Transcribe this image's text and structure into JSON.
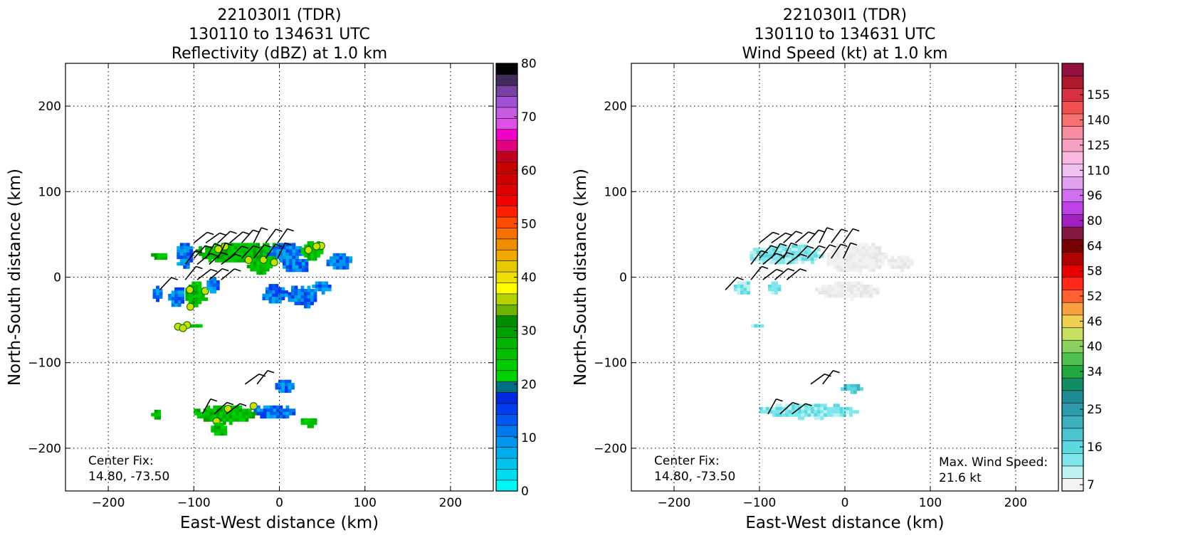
{
  "chart_data": [
    {
      "type": "heatmap",
      "title_lines": [
        "221030I1 (TDR)",
        "130110 to 134631 UTC",
        "Reflectivity (dBZ) at 1.0 km"
      ],
      "xlabel": "East-West distance (km)",
      "ylabel": "North-South distance (km)",
      "xlim": [
        -250,
        250
      ],
      "ylim": [
        -250,
        250
      ],
      "xticks": [
        -200,
        -100,
        0,
        100,
        200
      ],
      "yticks": [
        -200,
        -100,
        0,
        100,
        200
      ],
      "grid": true,
      "annotation_lines": [
        "Center Fix:",
        "14.80, -73.50"
      ],
      "colorbar": {
        "min": 0,
        "max": 80,
        "ticks": [
          "0",
          "10",
          "20",
          "30",
          "40",
          "50",
          "60",
          "70",
          "80"
        ],
        "colors": [
          "#00f5f5",
          "#00dbf0",
          "#00c3ec",
          "#00adee",
          "#0096ee",
          "#0078ee",
          "#0058f2",
          "#003cf0",
          "#0028dc",
          "#006e82",
          "#00d200",
          "#00ca00",
          "#00c000",
          "#00b400",
          "#00a000",
          "#008c00",
          "#6cb400",
          "#b4d200",
          "#ffff00",
          "#f0e000",
          "#e8c800",
          "#f0a800",
          "#f08c00",
          "#f87000",
          "#ff4c00",
          "#ff2000",
          "#f00000",
          "#e00000",
          "#d00000",
          "#c80000",
          "#c00020",
          "#e00080",
          "#f000c8",
          "#e050e8",
          "#c85ce0",
          "#a050d2",
          "#7840a0",
          "#402a5a",
          "#000000"
        ]
      },
      "regions": [
        {
          "x": [
            -98,
            12
          ],
          "y": [
            17,
            40
          ],
          "class": "green"
        },
        {
          "x": [
            -120,
            -100
          ],
          "y": [
            10,
            40
          ],
          "class": "blue"
        },
        {
          "x": [
            -15,
            30
          ],
          "y": [
            20,
            40
          ],
          "class": "blue"
        },
        {
          "x": [
            -38,
            -6
          ],
          "y": [
            5,
            22
          ],
          "class": "green"
        },
        {
          "x": [
            0,
            35
          ],
          "y": [
            5,
            25
          ],
          "class": "blue"
        },
        {
          "x": [
            25,
            50
          ],
          "y": [
            20,
            42
          ],
          "class": "green"
        },
        {
          "x": [
            55,
            85
          ],
          "y": [
            8,
            28
          ],
          "class": "blue"
        },
        {
          "x": [
            -150,
            -130
          ],
          "y": [
            20,
            28
          ],
          "class": "green"
        },
        {
          "x": [
            -148,
            -135
          ],
          "y": [
            -28,
            -10
          ],
          "class": "blue"
        },
        {
          "x": [
            -130,
            -110
          ],
          "y": [
            -35,
            -12
          ],
          "class": "blue"
        },
        {
          "x": [
            -110,
            -85
          ],
          "y": [
            -35,
            -5
          ],
          "class": "green"
        },
        {
          "x": [
            -85,
            -70
          ],
          "y": [
            -18,
            0
          ],
          "class": "blue"
        },
        {
          "x": [
            -20,
            10
          ],
          "y": [
            -30,
            -8
          ],
          "class": "blue"
        },
        {
          "x": [
            10,
            45
          ],
          "y": [
            -35,
            -10
          ],
          "class": "blue"
        },
        {
          "x": [
            38,
            60
          ],
          "y": [
            -18,
            -5
          ],
          "class": "blue"
        },
        {
          "x": [
            -120,
            -90
          ],
          "y": [
            -60,
            -55
          ],
          "class": "green"
        },
        {
          "x": [
            -100,
            -25
          ],
          "y": [
            -170,
            -150
          ],
          "class": "green"
        },
        {
          "x": [
            -30,
            20
          ],
          "y": [
            -165,
            -150
          ],
          "class": "blue"
        },
        {
          "x": [
            -5,
            20
          ],
          "y": [
            -135,
            -120
          ],
          "class": "blue"
        },
        {
          "x": [
            -150,
            -138
          ],
          "y": [
            -165,
            -155
          ],
          "class": "green"
        },
        {
          "x": [
            25,
            45
          ],
          "y": [
            -175,
            -165
          ],
          "class": "green"
        },
        {
          "x": [
            -80,
            -60
          ],
          "y": [
            -185,
            -170
          ],
          "class": "green"
        }
      ],
      "barbs": [
        {
          "x": [
            -100,
            10
          ],
          "y": 40,
          "rows": 2
        },
        {
          "x": [
            -110,
            -60
          ],
          "y": 15,
          "rows": 2
        },
        {
          "x": [
            -140,
            -130
          ],
          "y": -15,
          "rows": 1
        },
        {
          "x": [
            -40,
            -20
          ],
          "y": -125,
          "rows": 1
        },
        {
          "x": [
            -90,
            -55
          ],
          "y": -160,
          "rows": 1
        }
      ]
    },
    {
      "type": "heatmap",
      "title_lines": [
        "221030I1 (TDR)",
        "130110 to 134631 UTC",
        "Wind Speed (kt) at 1.0 km"
      ],
      "xlabel": "East-West distance (km)",
      "ylabel": "North-South distance (km)",
      "xlim": [
        -250,
        250
      ],
      "ylim": [
        -250,
        250
      ],
      "xticks": [
        -200,
        -100,
        0,
        100,
        200
      ],
      "yticks": [
        -200,
        -100,
        0,
        100,
        200
      ],
      "grid": true,
      "annotation_lines": [
        "Center Fix:",
        "14.80, -73.50"
      ],
      "max_wind_lines": [
        "Max. Wind Speed:",
        "21.6 kt"
      ],
      "colorbar": {
        "ticks": [
          "7",
          "16",
          "25",
          "34",
          "40",
          "46",
          "52",
          "58",
          "64",
          "80",
          "96",
          "110",
          "125",
          "140",
          "155"
        ],
        "tick_band_index": [
          0,
          3,
          6,
          9,
          11,
          13,
          15,
          17,
          19,
          21,
          23,
          25,
          27,
          29,
          31
        ],
        "colors": [
          "#f2f2f2",
          "#bff0f0",
          "#80e8ec",
          "#5cd8e0",
          "#4cc4d0",
          "#3cb0bc",
          "#2c9cac",
          "#1e8a94",
          "#128c64",
          "#1eaa3c",
          "#50c050",
          "#8cd060",
          "#c8e060",
          "#f0d050",
          "#f8a040",
          "#ff6030",
          "#ff2818",
          "#e80000",
          "#b00000",
          "#780000",
          "#801840",
          "#a020c0",
          "#c040e8",
          "#d070f0",
          "#e0a0f0",
          "#f0c0f0",
          "#f8b8e0",
          "#f8a0c0",
          "#f88ca0",
          "#f87070",
          "#f05050",
          "#d83040",
          "#b01830",
          "#901040"
        ]
      },
      "regions": [
        {
          "x": [
            -115,
            -25
          ],
          "y": [
            15,
            38
          ],
          "class": "cyan"
        },
        {
          "x": [
            -25,
            50
          ],
          "y": [
            5,
            40
          ],
          "class": "gray"
        },
        {
          "x": [
            50,
            80
          ],
          "y": [
            8,
            25
          ],
          "class": "gray"
        },
        {
          "x": [
            -130,
            -110
          ],
          "y": [
            -20,
            -5
          ],
          "class": "cyan"
        },
        {
          "x": [
            -90,
            -75
          ],
          "y": [
            -20,
            -5
          ],
          "class": "cyan"
        },
        {
          "x": [
            -35,
            40
          ],
          "y": [
            -25,
            -5
          ],
          "class": "gray"
        },
        {
          "x": [
            -110,
            -95
          ],
          "y": [
            -60,
            -55
          ],
          "class": "cyan"
        },
        {
          "x": [
            -100,
            15
          ],
          "y": [
            -165,
            -148
          ],
          "class": "cyan"
        },
        {
          "x": [
            -5,
            20
          ],
          "y": [
            -135,
            -125
          ],
          "class": "teal"
        }
      ]
    }
  ]
}
